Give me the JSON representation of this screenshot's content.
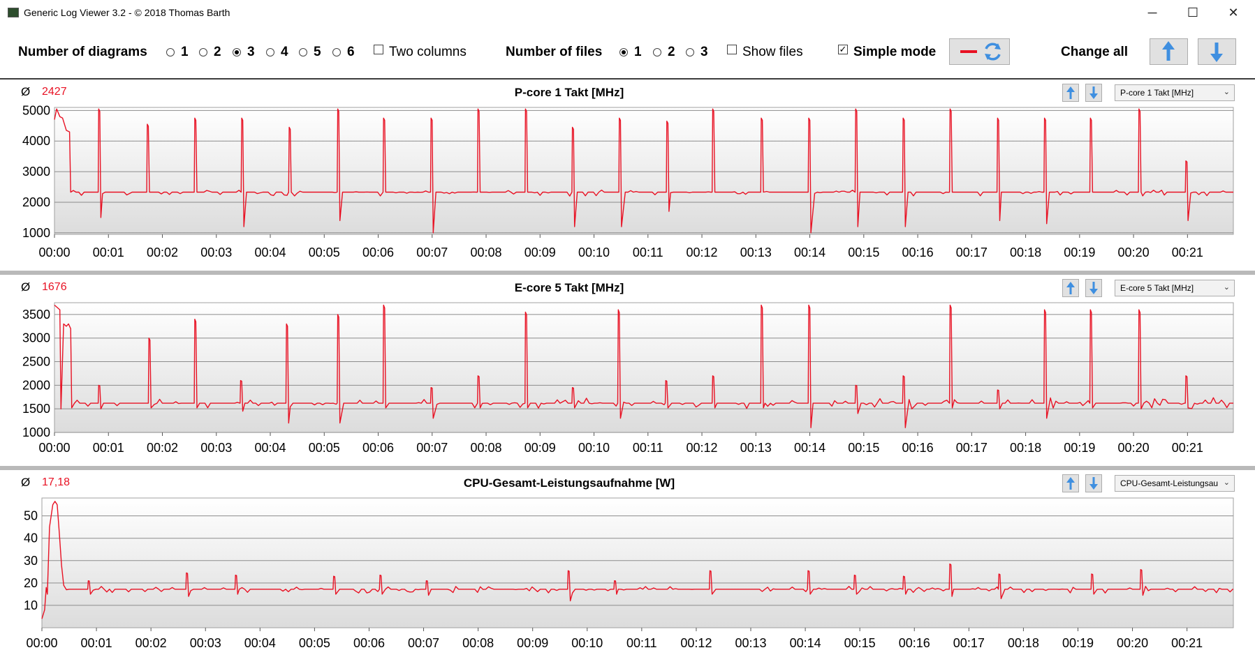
{
  "window": {
    "title": "Generic Log Viewer 3.2 - © 2018 Thomas Barth",
    "minimize": "─",
    "maximize": "☐",
    "close": "✕"
  },
  "toolbar": {
    "diagrams_label": "Number of diagrams",
    "diagram_options": [
      "1",
      "2",
      "3",
      "4",
      "5",
      "6"
    ],
    "diagrams_selected": "3",
    "two_columns_label": "Two columns",
    "files_label": "Number of files",
    "file_options": [
      "1",
      "2",
      "3"
    ],
    "files_selected": "1",
    "show_files_label": "Show files",
    "simple_mode_label": "Simple mode",
    "simple_mode_checked": true,
    "change_all_label": "Change all"
  },
  "colors": {
    "series": "#e81123",
    "arrow": "#3f8fe0",
    "plot_bg_top": "#ffffff",
    "plot_bg_bottom": "#dcdcdc"
  },
  "chart_data": [
    {
      "type": "line",
      "title": "P-core 1 Takt [MHz]",
      "selector": "P-core 1 Takt [MHz]",
      "average_symbol": "Ø",
      "average": "2427",
      "ylim": [
        950,
        5100
      ],
      "yticks": [
        "1000",
        "2000",
        "3000",
        "4000",
        "5000"
      ],
      "ytick_values": [
        1000,
        2000,
        3000,
        4000,
        5000
      ],
      "xticks": [
        "00:00",
        "00:01",
        "00:02",
        "00:03",
        "00:04",
        "00:05",
        "00:06",
        "00:07",
        "00:08",
        "00:09",
        "00:10",
        "00:11",
        "00:12",
        "00:13",
        "00:14",
        "00:15",
        "00:16",
        "00:17",
        "00:18",
        "00:19",
        "00:20",
        "00:21"
      ],
      "xlim_minutes": [
        0,
        21.85
      ],
      "grid": true,
      "baseline": 2330,
      "start_points": [
        [
          0.0,
          4700
        ],
        [
          0.04,
          5050
        ],
        [
          0.1,
          4800
        ],
        [
          0.15,
          4750
        ],
        [
          0.22,
          4350
        ],
        [
          0.28,
          4300
        ],
        [
          0.3,
          2330
        ]
      ],
      "spikes": [
        {
          "t": 0.82,
          "high": 5050,
          "low": 1500
        },
        {
          "t": 1.72,
          "high": 4550,
          "low": 2330
        },
        {
          "t": 2.6,
          "high": 4750,
          "low": 2330
        },
        {
          "t": 3.47,
          "high": 4750,
          "low": 1200
        },
        {
          "t": 4.35,
          "high": 4450,
          "low": 2330
        },
        {
          "t": 5.25,
          "high": 5050,
          "low": 1400
        },
        {
          "t": 6.1,
          "high": 4750,
          "low": 2330
        },
        {
          "t": 6.98,
          "high": 4750,
          "low": 1000
        },
        {
          "t": 7.85,
          "high": 5050,
          "low": 2330
        },
        {
          "t": 8.73,
          "high": 5050,
          "low": 2330
        },
        {
          "t": 9.6,
          "high": 4450,
          "low": 1200
        },
        {
          "t": 10.47,
          "high": 4750,
          "low": 1200
        },
        {
          "t": 11.35,
          "high": 4650,
          "low": 1700
        },
        {
          "t": 12.2,
          "high": 5050,
          "low": 2330
        },
        {
          "t": 13.1,
          "high": 4750,
          "low": 2330
        },
        {
          "t": 13.98,
          "high": 4750,
          "low": 1000
        },
        {
          "t": 14.85,
          "high": 5050,
          "low": 1200
        },
        {
          "t": 15.73,
          "high": 4750,
          "low": 1200
        },
        {
          "t": 16.6,
          "high": 5050,
          "low": 2330
        },
        {
          "t": 17.48,
          "high": 4750,
          "low": 1400
        },
        {
          "t": 18.35,
          "high": 4750,
          "low": 1300
        },
        {
          "t": 19.2,
          "high": 4750,
          "low": 2330
        },
        {
          "t": 20.1,
          "high": 5050,
          "low": 2330
        },
        {
          "t": 20.97,
          "high": 3350,
          "low": 1400
        }
      ],
      "noise": [
        2200,
        2400
      ]
    },
    {
      "type": "line",
      "title": "E-core 5 Takt [MHz]",
      "selector": "E-core 5 Takt [MHz]",
      "average_symbol": "Ø",
      "average": "1676",
      "ylim": [
        1000,
        3750
      ],
      "yticks": [
        "1000",
        "1500",
        "2000",
        "2500",
        "3000",
        "3500"
      ],
      "ytick_values": [
        1000,
        1500,
        2000,
        2500,
        3000,
        3500
      ],
      "xticks": [
        "00:00",
        "00:01",
        "00:02",
        "00:03",
        "00:04",
        "00:05",
        "00:06",
        "00:07",
        "00:08",
        "00:09",
        "00:10",
        "00:11",
        "00:12",
        "00:13",
        "00:14",
        "00:15",
        "00:16",
        "00:17",
        "00:18",
        "00:19",
        "00:20",
        "00:21"
      ],
      "xlim_minutes": [
        0,
        21.85
      ],
      "grid": true,
      "baseline": 1620,
      "start_points": [
        [
          0.0,
          3700
        ],
        [
          0.1,
          3600
        ],
        [
          0.12,
          1500
        ],
        [
          0.17,
          3300
        ],
        [
          0.22,
          3250
        ],
        [
          0.26,
          3300
        ],
        [
          0.3,
          3200
        ],
        [
          0.32,
          1520
        ]
      ],
      "spikes": [
        {
          "t": 0.82,
          "high": 2000,
          "low": 1500
        },
        {
          "t": 1.75,
          "high": 3000,
          "low": 1520
        },
        {
          "t": 2.6,
          "high": 3400,
          "low": 1520
        },
        {
          "t": 3.45,
          "high": 2100,
          "low": 1450
        },
        {
          "t": 4.3,
          "high": 3300,
          "low": 1200
        },
        {
          "t": 5.25,
          "high": 3500,
          "low": 1200
        },
        {
          "t": 6.1,
          "high": 3700,
          "low": 1520
        },
        {
          "t": 6.98,
          "high": 1950,
          "low": 1300
        },
        {
          "t": 7.85,
          "high": 2200,
          "low": 1520
        },
        {
          "t": 8.73,
          "high": 3550,
          "low": 1520
        },
        {
          "t": 9.6,
          "high": 1950,
          "low": 1520
        },
        {
          "t": 10.45,
          "high": 3600,
          "low": 1300
        },
        {
          "t": 11.33,
          "high": 2100,
          "low": 1520
        },
        {
          "t": 12.2,
          "high": 2200,
          "low": 1520
        },
        {
          "t": 13.1,
          "high": 3700,
          "low": 1520
        },
        {
          "t": 13.98,
          "high": 3700,
          "low": 1100
        },
        {
          "t": 14.85,
          "high": 2000,
          "low": 1400
        },
        {
          "t": 15.73,
          "high": 2200,
          "low": 1100
        },
        {
          "t": 16.6,
          "high": 3700,
          "low": 1520
        },
        {
          "t": 17.48,
          "high": 1900,
          "low": 1500
        },
        {
          "t": 18.35,
          "high": 3600,
          "low": 1300
        },
        {
          "t": 19.2,
          "high": 3600,
          "low": 1520
        },
        {
          "t": 20.1,
          "high": 3600,
          "low": 1500
        },
        {
          "t": 20.97,
          "high": 2200,
          "low": 1520
        }
      ],
      "noise": [
        1500,
        1750
      ]
    },
    {
      "type": "line",
      "title": "CPU-Gesamt-Leistungsaufnahme [W]",
      "selector": "CPU-Gesamt-Leistungsau",
      "average_symbol": "Ø",
      "average": "17,18",
      "ylim": [
        0,
        58
      ],
      "yticks": [
        "10",
        "20",
        "30",
        "40",
        "50"
      ],
      "ytick_values": [
        10,
        20,
        30,
        40,
        50
      ],
      "xticks": [
        "00:00",
        "00:01",
        "00:02",
        "00:03",
        "00:04",
        "00:05",
        "00:06",
        "00:07",
        "00:08",
        "00:09",
        "00:10",
        "00:11",
        "00:12",
        "00:13",
        "00:14",
        "00:15",
        "00:16",
        "00:17",
        "00:18",
        "00:19",
        "00:20",
        "00:21"
      ],
      "xlim_minutes": [
        0,
        21.85
      ],
      "grid": true,
      "baseline": 17.2,
      "start_points": [
        [
          0.0,
          4
        ],
        [
          0.05,
          8
        ],
        [
          0.08,
          18
        ],
        [
          0.1,
          15
        ],
        [
          0.14,
          45
        ],
        [
          0.2,
          55
        ],
        [
          0.24,
          56.5
        ],
        [
          0.28,
          55
        ],
        [
          0.32,
          42
        ],
        [
          0.36,
          28
        ],
        [
          0.4,
          19
        ],
        [
          0.45,
          17
        ]
      ],
      "spikes": [
        {
          "t": 0.85,
          "high": 21,
          "low": 15
        },
        {
          "t": 2.65,
          "high": 24.5,
          "low": 14
        },
        {
          "t": 3.55,
          "high": 23.5,
          "low": 15
        },
        {
          "t": 5.35,
          "high": 23,
          "low": 15
        },
        {
          "t": 6.2,
          "high": 23.5,
          "low": 15
        },
        {
          "t": 7.05,
          "high": 21,
          "low": 14.5
        },
        {
          "t": 9.65,
          "high": 25.5,
          "low": 12
        },
        {
          "t": 10.5,
          "high": 21,
          "low": 15
        },
        {
          "t": 12.25,
          "high": 25.5,
          "low": 15
        },
        {
          "t": 14.05,
          "high": 25.5,
          "low": 15
        },
        {
          "t": 14.9,
          "high": 23.5,
          "low": 15
        },
        {
          "t": 15.8,
          "high": 23,
          "low": 15
        },
        {
          "t": 16.65,
          "high": 28.5,
          "low": 14
        },
        {
          "t": 17.55,
          "high": 24,
          "low": 13
        },
        {
          "t": 19.25,
          "high": 24,
          "low": 15
        },
        {
          "t": 20.15,
          "high": 26,
          "low": 14.5
        }
      ],
      "noise": [
        15.5,
        18.5
      ]
    }
  ]
}
